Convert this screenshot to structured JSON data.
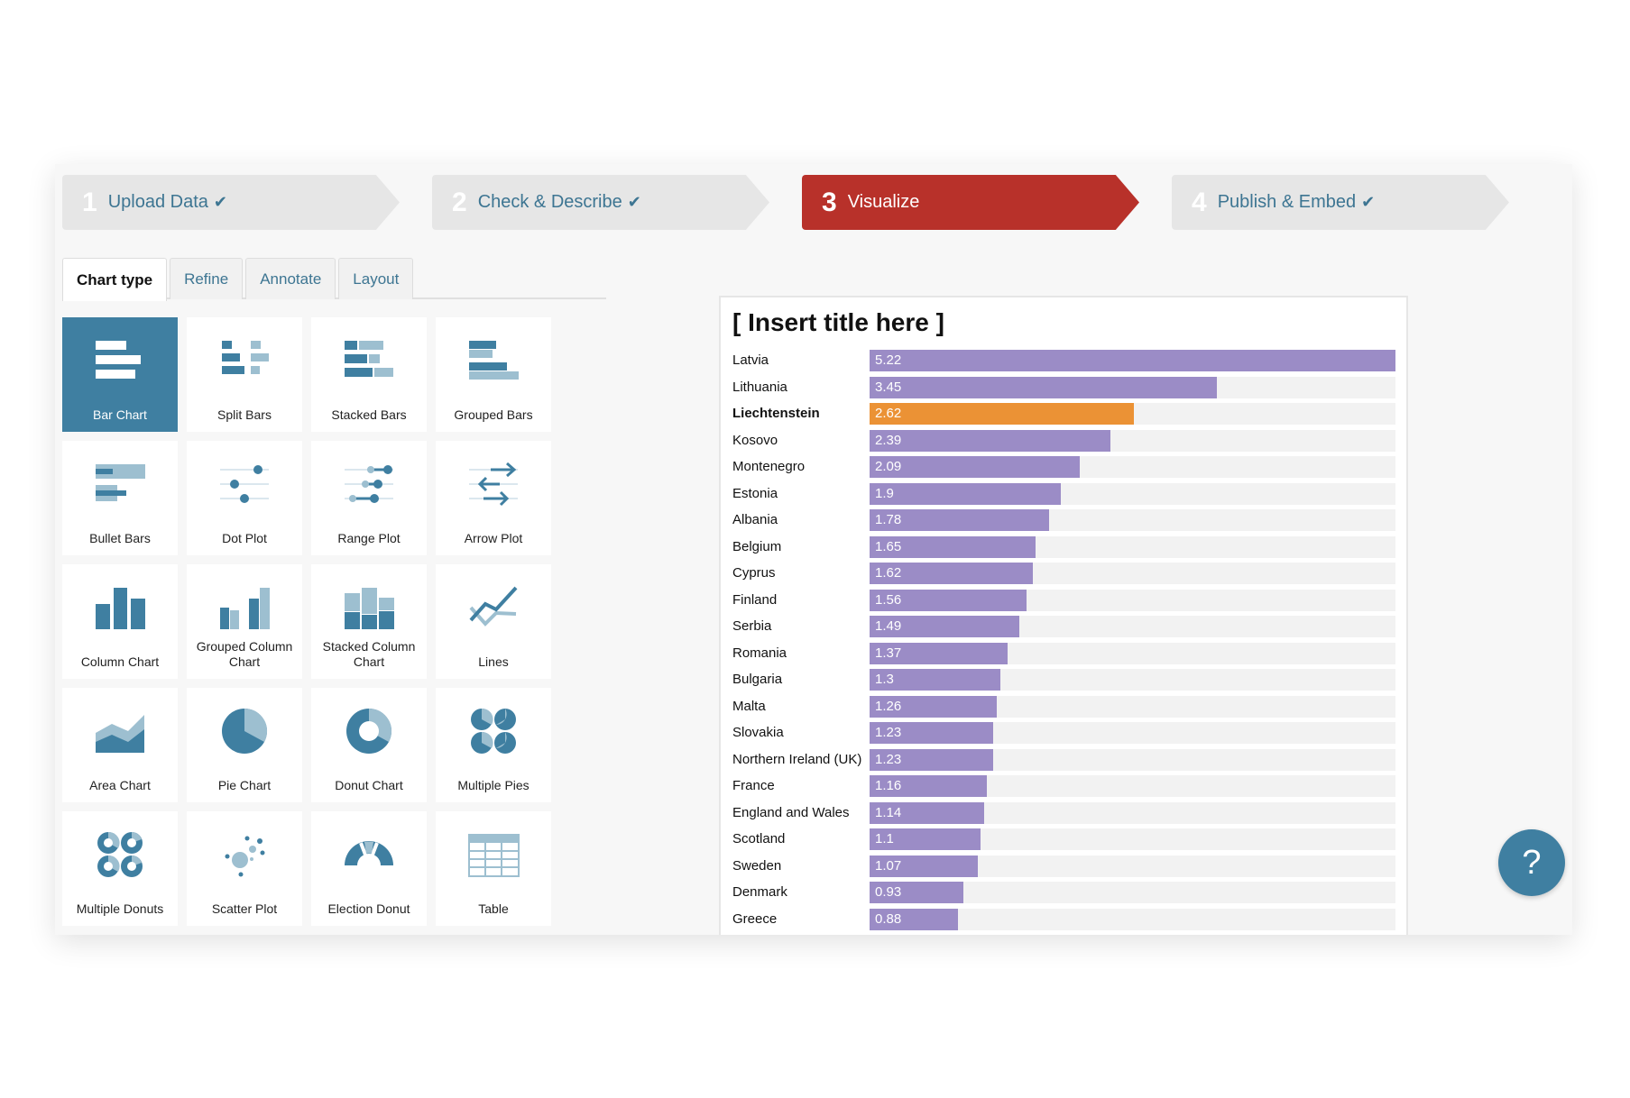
{
  "steps": [
    {
      "num": "1",
      "label": "Upload Data",
      "done": true
    },
    {
      "num": "2",
      "label": "Check & Describe",
      "done": true
    },
    {
      "num": "3",
      "label": "Visualize",
      "done": false,
      "active": true
    },
    {
      "num": "4",
      "label": "Publish & Embed",
      "done": true
    }
  ],
  "check_glyph": "✔",
  "tabs": [
    "Chart type",
    "Refine",
    "Annotate",
    "Layout"
  ],
  "chart_types": [
    {
      "label": "Bar Chart",
      "icon": "bar"
    },
    {
      "label": "Split Bars",
      "icon": "split"
    },
    {
      "label": "Stacked Bars",
      "icon": "stacked"
    },
    {
      "label": "Grouped Bars",
      "icon": "grouped"
    },
    {
      "label": "Bullet Bars",
      "icon": "bullet"
    },
    {
      "label": "Dot Plot",
      "icon": "dot"
    },
    {
      "label": "Range Plot",
      "icon": "range"
    },
    {
      "label": "Arrow Plot",
      "icon": "arrow"
    },
    {
      "label": "Column Chart",
      "icon": "column"
    },
    {
      "label": "Grouped Column Chart",
      "icon": "gcolumn"
    },
    {
      "label": "Stacked Column Chart",
      "icon": "scolumn"
    },
    {
      "label": "Lines",
      "icon": "lines"
    },
    {
      "label": "Area Chart",
      "icon": "area"
    },
    {
      "label": "Pie Chart",
      "icon": "pie"
    },
    {
      "label": "Donut Chart",
      "icon": "donut"
    },
    {
      "label": "Multiple Pies",
      "icon": "mpies"
    },
    {
      "label": "Multiple Donuts",
      "icon": "mdonuts"
    },
    {
      "label": "Scatter Plot",
      "icon": "scatter"
    },
    {
      "label": "Election Donut",
      "icon": "election"
    },
    {
      "label": "Table",
      "icon": "table"
    }
  ],
  "colors": {
    "accent": "#3f7fa1",
    "accent_light": "#9dbfd0",
    "active_step": "#b8312a",
    "bar": "#9b8cc6",
    "highlight": "#eb9235"
  },
  "help": {
    "label": "?"
  },
  "chart_data": {
    "type": "bar",
    "title": "[ Insert title here ]",
    "highlight": "Liechtenstein",
    "categories": [
      "Latvia",
      "Lithuania",
      "Liechtenstein",
      "Kosovo",
      "Montenegro",
      "Estonia",
      "Albania",
      "Belgium",
      "Cyprus",
      "Finland",
      "Serbia",
      "Romania",
      "Bulgaria",
      "Malta",
      "Slovakia",
      "Northern Ireland (UK)",
      "France",
      "England and Wales",
      "Scotland",
      "Sweden",
      "Denmark",
      "Greece"
    ],
    "values": [
      5.22,
      3.45,
      2.62,
      2.39,
      2.09,
      1.9,
      1.78,
      1.65,
      1.62,
      1.56,
      1.49,
      1.37,
      1.3,
      1.26,
      1.23,
      1.23,
      1.16,
      1.14,
      1.1,
      1.07,
      0.93,
      0.88
    ]
  }
}
